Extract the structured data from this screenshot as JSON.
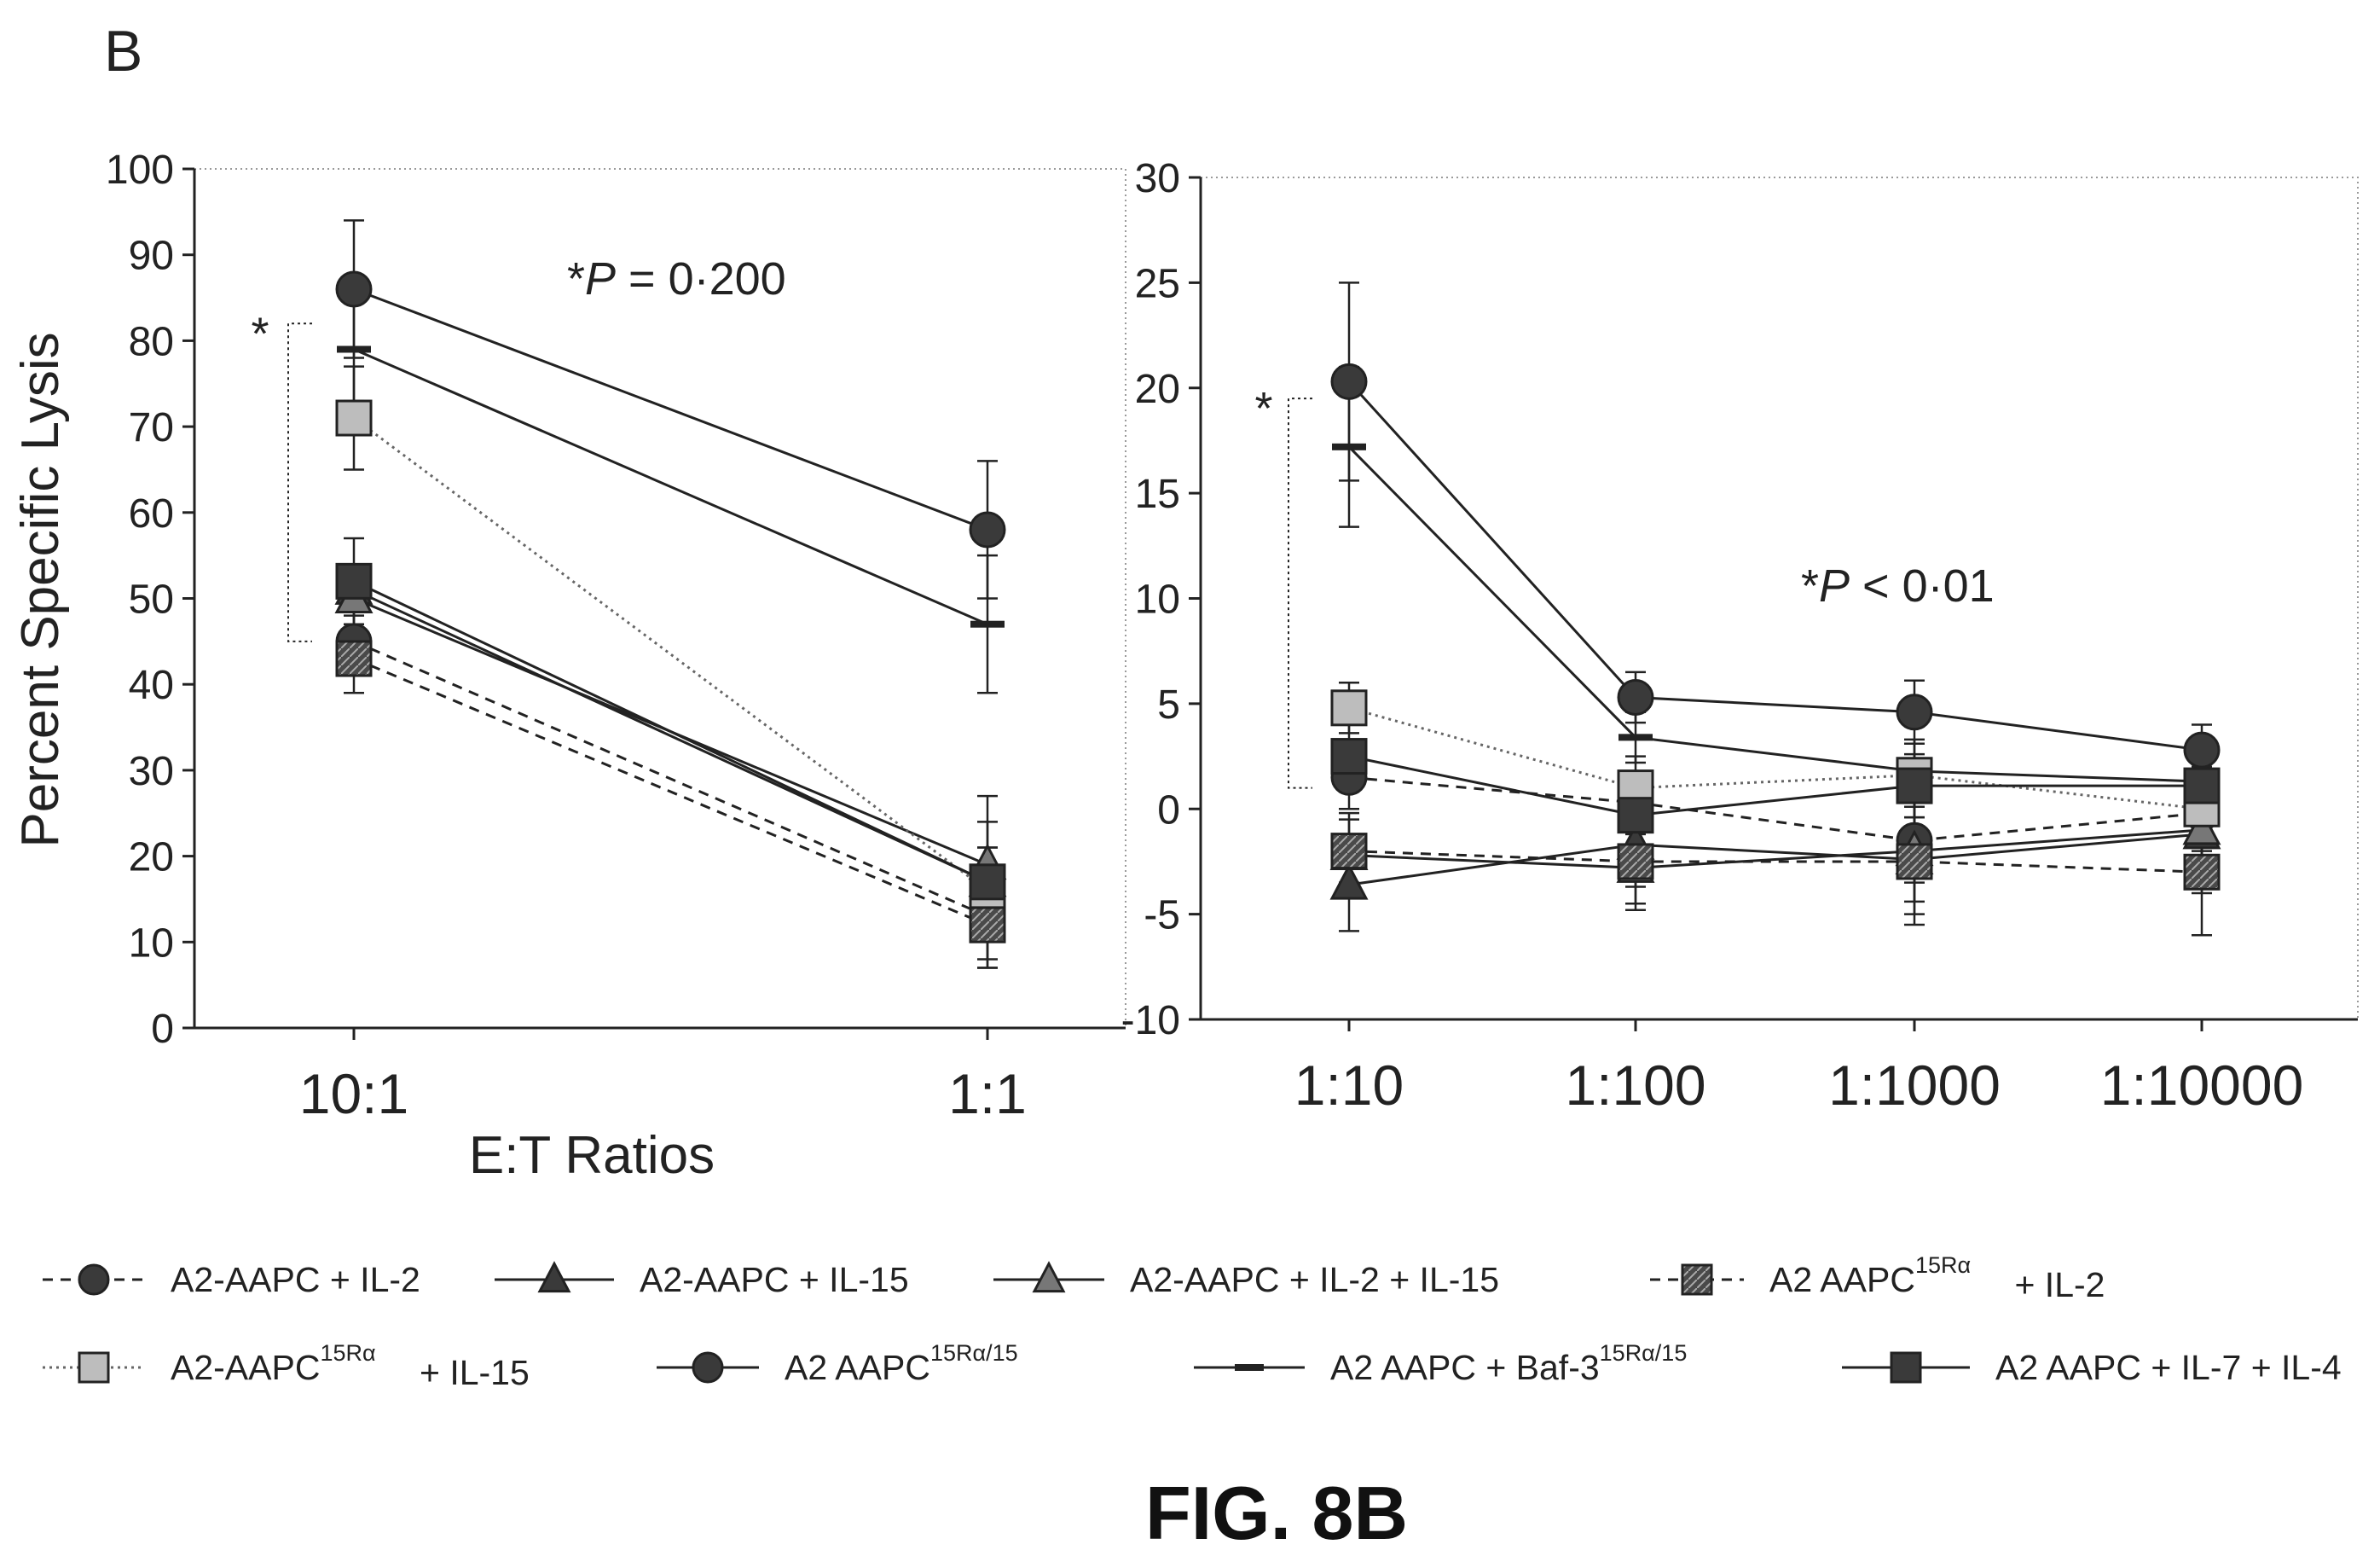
{
  "figure": {
    "panel_letter": "B",
    "caption": "FIG. 8B"
  },
  "colors": {
    "ink": "#222222",
    "dark_fill": "#3a3a3a",
    "mid_fill": "#777777",
    "light_fill": "#bdbdbd",
    "frame": "#9a9a9a"
  },
  "legend": [
    {
      "text": "A2-AAPC + IL-2",
      "sup": "",
      "suffix": "",
      "marker": "circle",
      "fill": "dark",
      "dash": "dashed"
    },
    {
      "text": "A2-AAPC + IL-15",
      "sup": "",
      "suffix": "",
      "marker": "triangle",
      "fill": "dark",
      "dash": "solid"
    },
    {
      "text": "A2-AAPC + IL-2 + IL-15",
      "sup": "",
      "suffix": "",
      "marker": "triangle",
      "fill": "mid",
      "dash": "solid"
    },
    {
      "text": "A2 AAPC",
      "sup": "15Rα",
      "suffix": " + IL-2",
      "marker": "square",
      "fill": "dark-hatch",
      "dash": "dashed"
    },
    {
      "text": "A2-AAPC",
      "sup": "15Rα",
      "suffix": " + IL-15",
      "marker": "square",
      "fill": "light",
      "dash": "dotted"
    },
    {
      "text": "A2 AAPC",
      "sup": "15Rα/15",
      "suffix": "",
      "marker": "circle",
      "fill": "dark",
      "dash": "solid"
    },
    {
      "text": "A2 AAPC + Baf-3",
      "sup": "15Rα/15",
      "suffix": "",
      "marker": "dash",
      "fill": "dark",
      "dash": "solid"
    },
    {
      "text": "A2 AAPC + IL-7 + IL-4",
      "sup": "",
      "suffix": "",
      "marker": "square",
      "fill": "dark",
      "dash": "solid"
    }
  ],
  "chart_data": [
    {
      "type": "line",
      "title": "",
      "xlabel": "E:T Ratios",
      "ylabel": "Percent Specific Lysis",
      "categories": [
        "10:1",
        "1:1"
      ],
      "ylim": [
        0,
        100
      ],
      "yticks": [
        0,
        10,
        20,
        30,
        40,
        50,
        60,
        70,
        80,
        90,
        100
      ],
      "annotation": {
        "star": "*",
        "italic": "P",
        "rest": " = 0·200"
      },
      "bracket": {
        "label": "*",
        "from": 45,
        "to": 82
      },
      "series": [
        {
          "values": [
            45,
            13
          ],
          "err": [
            4,
            5
          ],
          "marker": "circle",
          "fill": "dark",
          "dash": "dashed"
        },
        {
          "values": [
            51,
            17
          ],
          "err": [
            3,
            4
          ],
          "marker": "triangle",
          "fill": "dark",
          "dash": "solid"
        },
        {
          "values": [
            50,
            19
          ],
          "err": [
            4,
            5
          ],
          "marker": "triangle",
          "fill": "mid",
          "dash": "solid"
        },
        {
          "values": [
            43,
            12
          ],
          "err": [
            4,
            5
          ],
          "marker": "square",
          "fill": "dark-hatch",
          "dash": "dashed"
        },
        {
          "values": [
            71,
            16
          ],
          "err": [
            6,
            5
          ],
          "marker": "square",
          "fill": "light",
          "dash": "dotted"
        },
        {
          "values": [
            86,
            58
          ],
          "err": [
            8,
            8
          ],
          "marker": "circle",
          "fill": "dark",
          "dash": "solid"
        },
        {
          "values": [
            79,
            47
          ],
          "err": [
            6,
            8
          ],
          "marker": "dash",
          "fill": "dark",
          "dash": "solid"
        },
        {
          "values": [
            52,
            17
          ],
          "err": [
            5,
            10
          ],
          "marker": "square",
          "fill": "dark",
          "dash": "solid"
        }
      ]
    },
    {
      "type": "line",
      "title": "",
      "xlabel": "",
      "ylabel": "",
      "categories": [
        "1:10",
        "1:100",
        "1:1000",
        "1:10000"
      ],
      "ylim": [
        -10,
        30
      ],
      "yticks": [
        -10,
        -5,
        0,
        5,
        10,
        15,
        20,
        25,
        30
      ],
      "annotation": {
        "star": "*",
        "italic": "P",
        "rest": " < 0·01"
      },
      "bracket": {
        "label": "*",
        "from": 1,
        "to": 19.5
      },
      "series": [
        {
          "values": [
            1.5,
            0.3,
            -1.5,
            -0.2
          ],
          "err": [
            1.5,
            1.5,
            2,
            2
          ],
          "marker": "circle",
          "fill": "dark",
          "dash": "dashed"
        },
        {
          "values": [
            -3.6,
            -1.7,
            -2.4,
            -1.2
          ],
          "err": [
            2.2,
            2,
            2,
            2
          ],
          "marker": "triangle",
          "fill": "dark",
          "dash": "solid"
        },
        {
          "values": [
            -2.2,
            -2.8,
            -2.0,
            -1.0
          ],
          "err": [
            2,
            2,
            3,
            3
          ],
          "marker": "triangle",
          "fill": "mid",
          "dash": "solid"
        },
        {
          "values": [
            -2.0,
            -2.5,
            -2.5,
            -3.0
          ],
          "err": [
            1.5,
            2,
            3,
            3
          ],
          "marker": "square",
          "fill": "dark-hatch",
          "dash": "dashed"
        },
        {
          "values": [
            4.8,
            1.0,
            1.6,
            0.0
          ],
          "err": [
            1.2,
            1.5,
            1.5,
            2
          ],
          "marker": "square",
          "fill": "light",
          "dash": "dotted"
        },
        {
          "values": [
            20.3,
            5.3,
            4.6,
            2.8
          ],
          "err": [
            4.7,
            1.2,
            1.5,
            1.2
          ],
          "marker": "circle",
          "fill": "dark",
          "dash": "solid"
        },
        {
          "values": [
            17.2,
            3.4,
            1.8,
            1.3
          ],
          "err": [
            3.8,
            1.2,
            1.5,
            1.5
          ],
          "marker": "dash",
          "fill": "dark",
          "dash": "solid"
        },
        {
          "values": [
            2.5,
            -0.3,
            1.1,
            1.1
          ],
          "err": [
            1.5,
            1.5,
            1.5,
            1.5
          ],
          "marker": "square",
          "fill": "dark",
          "dash": "solid"
        }
      ]
    }
  ]
}
